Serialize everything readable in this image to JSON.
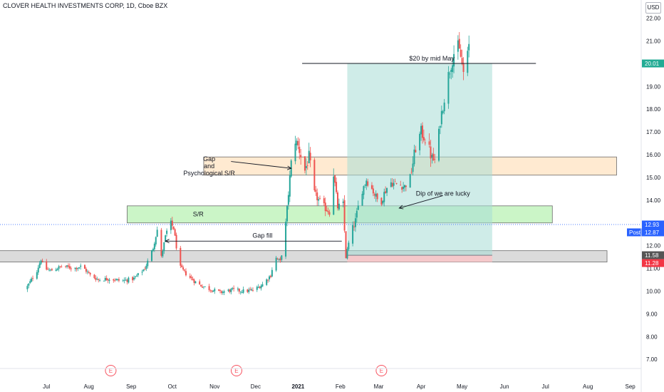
{
  "header": {
    "symbol_title": "CLOVER HEALTH INVESTMENTS CORP, 1D, Cboe BZX",
    "currency_button": "USD"
  },
  "chart_data": {
    "type": "candlestick",
    "title": "CLOVER HEALTH INVESTMENTS CORP, 1D, Cboe BZX",
    "currency": "USD",
    "ylim": [
      6.6,
      22.8
    ],
    "yticks": [
      7,
      8,
      9,
      10,
      11,
      12,
      13,
      14,
      15,
      16,
      17,
      18,
      19,
      20,
      21,
      22
    ],
    "ytick_labels": [
      "7.00",
      "8.00",
      "9.00",
      "10.00",
      "11.00",
      "12.00",
      "13.00",
      "14.00",
      "15.00",
      "16.00",
      "17.00",
      "18.00",
      "19.00",
      "20.00",
      "21.00",
      "22.00"
    ],
    "xtick_labels": [
      "Jul",
      "Aug",
      "Sep",
      "Oct",
      "Nov",
      "Dec",
      "2021",
      "Feb",
      "Mar",
      "Apr",
      "May",
      "Jun",
      "Jul",
      "Aug",
      "Sep"
    ],
    "xlim_days": [
      -34,
      435
    ],
    "xticks_days": [
      0,
      31,
      62,
      92,
      123,
      153,
      184,
      215,
      243,
      274,
      304,
      335,
      365,
      396,
      427
    ],
    "price_tags": [
      {
        "label": "20.01",
        "value": 20.01,
        "color": "#22ab94"
      },
      {
        "label": "12.93",
        "value": 12.93,
        "color": "#2962ff"
      },
      {
        "label": "12.87",
        "value": 12.87,
        "color": "#2962ff",
        "prefix": "Post"
      },
      {
        "label": "11.58",
        "value": 11.58,
        "color": "#555555"
      },
      {
        "label": "11.28",
        "value": 11.28,
        "color": "#f23645"
      }
    ],
    "last_price_line": 12.93,
    "earnings_markers": [
      {
        "label": "E",
        "day": 47
      },
      {
        "label": "E",
        "day": 139
      },
      {
        "label": "E",
        "day": 245
      }
    ],
    "zones": [
      {
        "name": "gray-support-zone",
        "label": "",
        "from_day": -38,
        "to_day": 410,
        "low": 11.28,
        "high": 11.78,
        "color": "#cfcfcf"
      },
      {
        "name": "sr-zone",
        "label": "S/R",
        "from_day": 59,
        "to_day": 370,
        "low": 13.0,
        "high": 13.75,
        "color": "#b9f2b4"
      },
      {
        "name": "gap-zone",
        "label": "",
        "from_day": 115,
        "to_day": 417,
        "low": 15.1,
        "high": 15.9,
        "color": "#ffe3c2"
      }
    ],
    "position_tool": {
      "from_day": 220,
      "to_day": 326,
      "entry": 11.58,
      "target": 20.01,
      "stop": 11.28,
      "profit_color": "#a8ddd6",
      "loss_color": "#f7c7c9"
    },
    "target_line": {
      "from_day": 187,
      "to_day": 358,
      "value": 20.01,
      "label": "$20 by mid May"
    },
    "annotations": [
      {
        "text": "Gap\nand\nPsychological S/R",
        "day": 119,
        "value": 15.5
      },
      {
        "text": "S/R",
        "day": 111,
        "value": 13.38
      },
      {
        "text": "Gap fill",
        "day": 158,
        "value": 12.45
      },
      {
        "text": "Dip of we are lucky",
        "day": 290,
        "value": 14.3
      }
    ],
    "arrows": [
      {
        "from_day": 135,
        "from_value": 15.7,
        "to_day": 179,
        "to_value": 15.4
      },
      {
        "from_day": 216,
        "from_value": 12.2,
        "to_day": 87,
        "to_value": 12.2
      },
      {
        "from_day": 290,
        "from_value": 14.2,
        "to_day": 258,
        "to_value": 13.65
      }
    ],
    "anchors": [
      {
        "day": -15,
        "value": 10.1
      },
      {
        "day": -12,
        "value": 10.4
      },
      {
        "day": -7,
        "value": 10.9
      },
      {
        "day": -4,
        "value": 11.4
      },
      {
        "day": -2,
        "value": 11.0
      },
      {
        "day": 3,
        "value": 10.9
      },
      {
        "day": 12,
        "value": 11.1
      },
      {
        "day": 20,
        "value": 11.0
      },
      {
        "day": 26,
        "value": 11.1
      },
      {
        "day": 32,
        "value": 10.7
      },
      {
        "day": 38,
        "value": 10.5
      },
      {
        "day": 46,
        "value": 10.55
      },
      {
        "day": 55,
        "value": 10.45
      },
      {
        "day": 64,
        "value": 10.55
      },
      {
        "day": 72,
        "value": 11.0
      },
      {
        "day": 78,
        "value": 11.9
      },
      {
        "day": 81,
        "value": 12.7
      },
      {
        "day": 84,
        "value": 11.5
      },
      {
        "day": 87,
        "value": 12.4
      },
      {
        "day": 90,
        "value": 13.0
      },
      {
        "day": 93,
        "value": 12.8
      },
      {
        "day": 97,
        "value": 11.1
      },
      {
        "day": 103,
        "value": 10.7
      },
      {
        "day": 111,
        "value": 10.3
      },
      {
        "day": 119,
        "value": 10.1
      },
      {
        "day": 127,
        "value": 9.95
      },
      {
        "day": 136,
        "value": 10.05
      },
      {
        "day": 145,
        "value": 10.0
      },
      {
        "day": 152,
        "value": 10.05
      },
      {
        "day": 158,
        "value": 10.3
      },
      {
        "day": 164,
        "value": 10.7
      },
      {
        "day": 167,
        "value": 11.5
      },
      {
        "day": 171,
        "value": 11.3
      },
      {
        "day": 174,
        "value": 12.3
      },
      {
        "day": 176,
        "value": 13.6
      },
      {
        "day": 178,
        "value": 15.0
      },
      {
        "day": 181,
        "value": 16.8
      },
      {
        "day": 185,
        "value": 16.2
      },
      {
        "day": 189,
        "value": 15.3
      },
      {
        "day": 192,
        "value": 15.9
      },
      {
        "day": 196,
        "value": 14.3
      },
      {
        "day": 199,
        "value": 14.0
      },
      {
        "day": 203,
        "value": 13.7
      },
      {
        "day": 207,
        "value": 13.5
      },
      {
        "day": 210,
        "value": 15.2
      },
      {
        "day": 213,
        "value": 13.7
      },
      {
        "day": 217,
        "value": 13.8
      },
      {
        "day": 219,
        "value": 11.5
      },
      {
        "day": 222,
        "value": 12.4
      },
      {
        "day": 226,
        "value": 13.1
      },
      {
        "day": 230,
        "value": 14.3
      },
      {
        "day": 234,
        "value": 14.9
      },
      {
        "day": 238,
        "value": 14.5
      },
      {
        "day": 244,
        "value": 13.8
      },
      {
        "day": 247,
        "value": 14.3
      },
      {
        "day": 251,
        "value": 14.8
      },
      {
        "day": 256,
        "value": 14.7
      },
      {
        "day": 262,
        "value": 14.6
      },
      {
        "day": 266,
        "value": 15.0
      },
      {
        "day": 270,
        "value": 16.3
      },
      {
        "day": 274,
        "value": 17.0
      },
      {
        "day": 278,
        "value": 16.6
      },
      {
        "day": 282,
        "value": 15.8
      },
      {
        "day": 285,
        "value": 15.7
      },
      {
        "day": 288,
        "value": 17.5
      },
      {
        "day": 291,
        "value": 18.5
      },
      {
        "day": 294,
        "value": 19.5
      },
      {
        "day": 297,
        "value": 20.2
      },
      {
        "day": 300,
        "value": 21.0
      },
      {
        "day": 303,
        "value": 20.3
      },
      {
        "day": 305,
        "value": 19.6
      },
      {
        "day": 307,
        "value": 19.9
      },
      {
        "day": 309,
        "value": 20.8
      }
    ]
  }
}
